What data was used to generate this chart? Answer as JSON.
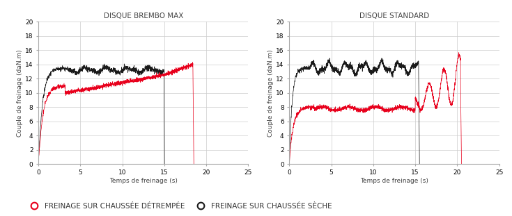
{
  "title_left": "DISQUE BREMBO MAX",
  "title_right": "DISQUE STANDARD",
  "xlabel": "Temps de freinage (s)",
  "ylabel": "Couple de freinage (daN.m)",
  "xlim": [
    0,
    25
  ],
  "ylim": [
    0,
    20
  ],
  "xticks": [
    0,
    5,
    10,
    15,
    20,
    25
  ],
  "yticks": [
    0,
    2,
    4,
    6,
    8,
    10,
    12,
    14,
    16,
    18,
    20
  ],
  "color_wet": "#e8001c",
  "color_dry": "#1a1a1a",
  "legend_wet": "FREINAGE SUR CHAUSSÉE DÉTREMPÉE",
  "legend_dry": "FREINAGE SUR CHAUSSÉE SÈCHE",
  "background_color": "#ffffff",
  "grid_color": "#cccccc",
  "title_fontsize": 7.5,
  "label_fontsize": 6.5,
  "tick_fontsize": 6.5,
  "legend_fontsize": 7.5
}
